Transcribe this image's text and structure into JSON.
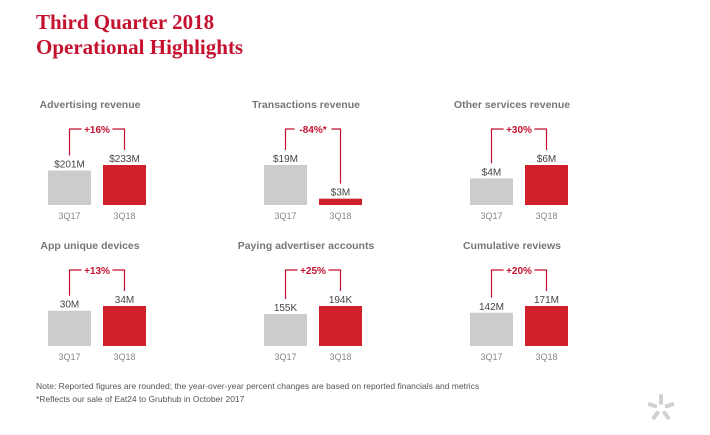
{
  "header": {
    "title_line1": "Third Quarter 2018",
    "title_line2": "Operational Highlights"
  },
  "colors": {
    "prior": "#cccccc",
    "current": "#d0202a",
    "accent": "#c41230",
    "text": "#777777"
  },
  "chart_data": [
    {
      "type": "bar",
      "title": "Advertising revenue",
      "categories": [
        "3Q17",
        "3Q18"
      ],
      "values": [
        201,
        233
      ],
      "labels": [
        "$201M",
        "$233M"
      ],
      "change": "+16%"
    },
    {
      "type": "bar",
      "title": "Transactions revenue",
      "categories": [
        "3Q17",
        "3Q18"
      ],
      "values": [
        19,
        3
      ],
      "labels": [
        "$19M",
        "$3M"
      ],
      "change": "-84%*"
    },
    {
      "type": "bar",
      "title": "Other services revenue",
      "categories": [
        "3Q17",
        "3Q18"
      ],
      "values": [
        4,
        6
      ],
      "labels": [
        "$4M",
        "$6M"
      ],
      "change": "+30%"
    },
    {
      "type": "bar",
      "title": "App unique devices",
      "categories": [
        "3Q17",
        "3Q18"
      ],
      "values": [
        30,
        34
      ],
      "labels": [
        "30M",
        "34M"
      ],
      "change": "+13%"
    },
    {
      "type": "bar",
      "title": "Paying advertiser accounts",
      "categories": [
        "3Q17",
        "3Q18"
      ],
      "values": [
        155,
        194
      ],
      "labels": [
        "155K",
        "194K"
      ],
      "change": "+25%"
    },
    {
      "type": "bar",
      "title": "Cumulative reviews",
      "categories": [
        "3Q17",
        "3Q18"
      ],
      "values": [
        142,
        171
      ],
      "labels": [
        "142M",
        "171M"
      ],
      "change": "+20%"
    }
  ],
  "notes": {
    "note1": "Note: Reported figures are rounded; the year-over-year percent changes are based on reported financials and metrics",
    "note2": "*Reflects our sale of Eat24 to Grubhub in October 2017"
  },
  "logo_icon": "yelp-burst-icon"
}
